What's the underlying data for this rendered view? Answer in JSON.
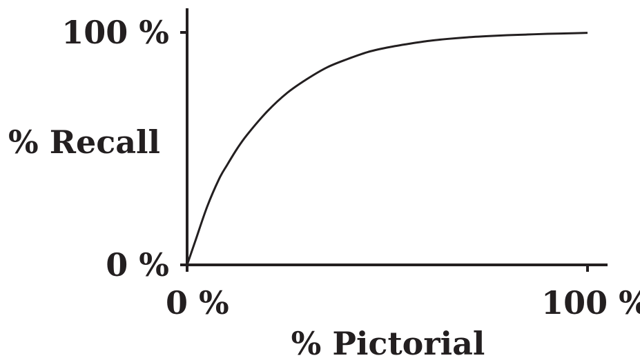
{
  "chart_data": {
    "type": "line",
    "title": "",
    "xlabel": "% Pictorial",
    "ylabel": "% Recall",
    "xlim": [
      0,
      100
    ],
    "ylim": [
      0,
      100
    ],
    "x_ticks": [
      {
        "value": 0,
        "label": "0 %"
      },
      {
        "value": 100,
        "label": "100 %"
      }
    ],
    "y_ticks": [
      {
        "value": 0,
        "label": "0 %"
      },
      {
        "value": 100,
        "label": "100 %"
      }
    ],
    "grid": false,
    "legend": "none",
    "series": [
      {
        "color": "#231f20",
        "x": [
          0,
          2,
          5,
          8,
          10,
          12.5,
          15,
          20,
          25,
          30,
          35,
          40,
          45,
          50,
          55,
          60,
          65,
          70,
          75,
          80,
          85,
          90,
          95,
          100
        ],
        "y": [
          0,
          10,
          25,
          37,
          43,
          50,
          56,
          66,
          74,
          80,
          85,
          88.5,
          91.5,
          93.5,
          95,
          96.3,
          97.2,
          97.9,
          98.4,
          98.8,
          99.1,
          99.4,
          99.6,
          99.8
        ]
      }
    ]
  }
}
